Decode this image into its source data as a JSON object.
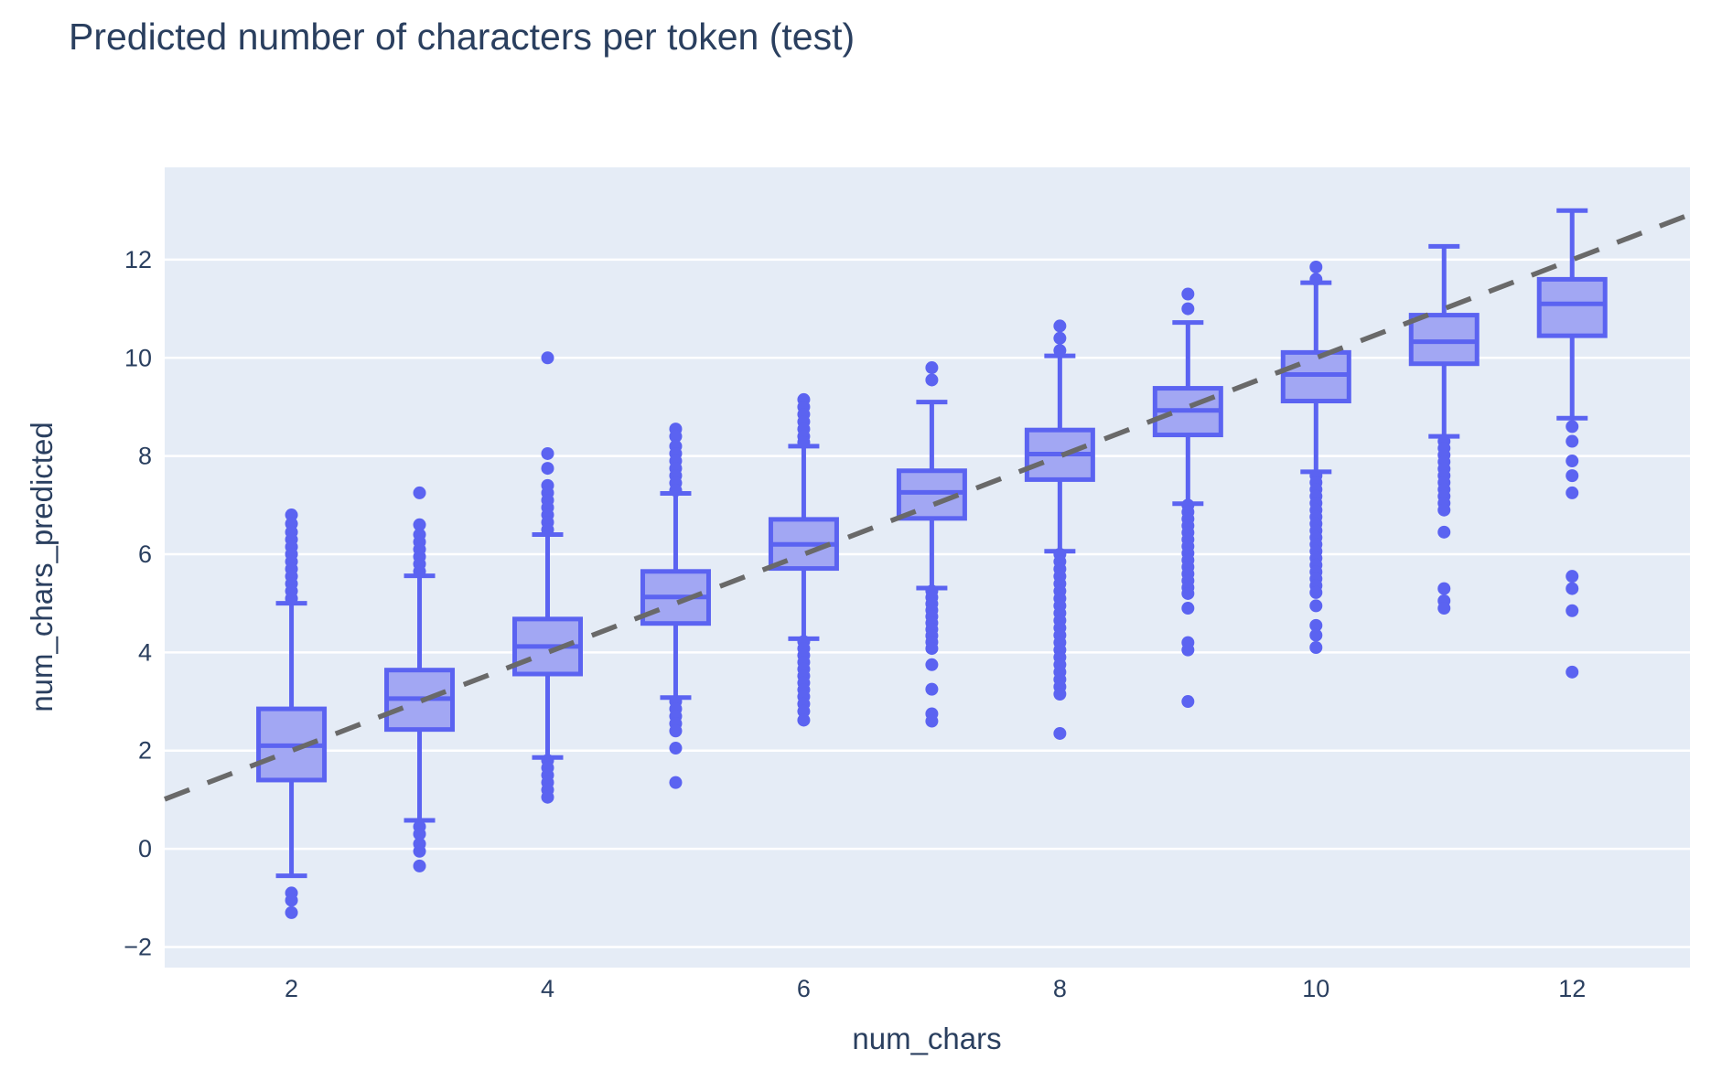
{
  "title": "Predicted number of characters per token (test)",
  "axes": {
    "x": {
      "label": "num_chars",
      "ticks": [
        2,
        4,
        6,
        8,
        10,
        12
      ],
      "range": [
        1.01,
        12.92
      ]
    },
    "y": {
      "label": "num_chars_predicted",
      "ticks": [
        -2,
        0,
        2,
        4,
        6,
        8,
        10,
        12
      ],
      "range": [
        -2.42,
        13.88
      ]
    }
  },
  "colors": {
    "paper": "#ffffff",
    "plot_bg": "#E5ECF6",
    "grid": "#ffffff",
    "box_line": "#5B63F1",
    "box_fill": "#A2A7F3",
    "marker": "#5B63F1",
    "ref_line": "#696969",
    "text": "#2A3F5F"
  },
  "chart_data": {
    "type": "box",
    "title": "Predicted number of characters per token (test)",
    "xlabel": "num_chars",
    "ylabel": "num_chars_predicted",
    "xlim": [
      1.01,
      12.92
    ],
    "ylim": [
      -2.42,
      13.88
    ],
    "grid": "horizontal-only",
    "legend": "none",
    "reference_line": {
      "name": "identity y=x",
      "style": "dashed",
      "x": [
        1.01,
        12.92
      ],
      "y": [
        1.01,
        12.92
      ]
    },
    "boxes": [
      {
        "x": 2,
        "whisker_low": -0.55,
        "q1": 1.4,
        "median": 2.1,
        "q3": 2.85,
        "whisker_high": 5.0,
        "outliers_high": [
          6.8,
          6.62,
          6.45,
          6.3,
          6.15,
          6.0,
          5.85,
          5.7,
          5.55,
          5.4,
          5.25,
          5.1
        ],
        "outliers_low": [
          -0.9,
          -1.05,
          -1.3
        ]
      },
      {
        "x": 3,
        "whisker_low": 0.58,
        "q1": 2.43,
        "median": 3.06,
        "q3": 3.64,
        "whisker_high": 5.56,
        "outliers_high": [
          7.25,
          6.6,
          6.4,
          6.25,
          6.1,
          5.95,
          5.8,
          5.65
        ],
        "outliers_low": [
          0.45,
          0.3,
          0.1,
          -0.05,
          -0.35
        ]
      },
      {
        "x": 4,
        "whisker_low": 1.86,
        "q1": 3.56,
        "median": 4.12,
        "q3": 4.68,
        "whisker_high": 6.4,
        "outliers_high": [
          10.0,
          8.05,
          7.75,
          7.4,
          7.25,
          7.1,
          6.95,
          6.8,
          6.65,
          6.5
        ],
        "outliers_low": [
          1.8,
          1.65,
          1.5,
          1.35,
          1.2,
          1.05
        ]
      },
      {
        "x": 5,
        "whisker_low": 3.08,
        "q1": 4.59,
        "median": 5.13,
        "q3": 5.65,
        "whisker_high": 7.24,
        "outliers_high": [
          8.55,
          8.4,
          8.2,
          8.05,
          7.9,
          7.75,
          7.6,
          7.45,
          7.3
        ],
        "outliers_low": [
          3.0,
          2.85,
          2.7,
          2.55,
          2.4,
          2.05,
          1.35
        ]
      },
      {
        "x": 6,
        "whisker_low": 4.28,
        "q1": 5.71,
        "median": 6.2,
        "q3": 6.71,
        "whisker_high": 8.2,
        "outliers_high": [
          9.15,
          9.0,
          8.85,
          8.7,
          8.55,
          8.4,
          8.28
        ],
        "outliers_low": [
          4.22,
          4.08,
          3.94,
          3.8,
          3.66,
          3.52,
          3.38,
          3.24,
          3.1,
          2.95,
          2.8,
          2.62
        ]
      },
      {
        "x": 7,
        "whisker_low": 5.31,
        "q1": 6.73,
        "median": 7.26,
        "q3": 7.7,
        "whisker_high": 9.1,
        "outliers_high": [
          9.8,
          9.55
        ],
        "outliers_low": [
          5.25,
          5.12,
          4.99,
          4.86,
          4.73,
          4.6,
          4.47,
          4.34,
          4.21,
          4.08,
          3.75,
          3.25,
          2.75,
          2.6
        ]
      },
      {
        "x": 8,
        "whisker_low": 6.06,
        "q1": 7.52,
        "median": 8.04,
        "q3": 8.53,
        "whisker_high": 10.04,
        "outliers_high": [
          10.65,
          10.4,
          10.15
        ],
        "outliers_low": [
          6.0,
          5.85,
          5.7,
          5.55,
          5.4,
          5.25,
          5.1,
          4.95,
          4.8,
          4.65,
          4.5,
          4.35,
          4.2,
          4.05,
          3.9,
          3.75,
          3.6,
          3.45,
          3.3,
          3.15,
          2.35
        ]
      },
      {
        "x": 9,
        "whisker_low": 7.03,
        "q1": 8.43,
        "median": 8.93,
        "q3": 9.38,
        "whisker_high": 10.72,
        "outliers_high": [
          11.3,
          11.0
        ],
        "outliers_low": [
          7.0,
          6.86,
          6.72,
          6.58,
          6.44,
          6.3,
          6.16,
          6.02,
          5.88,
          5.74,
          5.6,
          5.46,
          5.32,
          5.2,
          4.9,
          4.2,
          4.05,
          3.0
        ]
      },
      {
        "x": 10,
        "whisker_low": 7.68,
        "q1": 9.12,
        "median": 9.66,
        "q3": 10.11,
        "whisker_high": 11.53,
        "outliers_high": [
          11.85,
          11.6
        ],
        "outliers_low": [
          7.6,
          7.46,
          7.32,
          7.18,
          7.04,
          6.9,
          6.76,
          6.62,
          6.48,
          6.34,
          6.2,
          6.06,
          5.92,
          5.78,
          5.64,
          5.5,
          5.36,
          5.22,
          4.95,
          4.55,
          4.35,
          4.1
        ]
      },
      {
        "x": 11,
        "whisker_low": 8.4,
        "q1": 9.88,
        "median": 10.33,
        "q3": 10.87,
        "whisker_high": 12.27,
        "outliers_high": [],
        "outliers_low": [
          8.3,
          8.16,
          8.02,
          7.88,
          7.74,
          7.6,
          7.46,
          7.32,
          7.18,
          7.04,
          6.9,
          6.45,
          5.3,
          5.05,
          4.9
        ]
      },
      {
        "x": 12,
        "whisker_low": 8.77,
        "q1": 10.45,
        "median": 11.1,
        "q3": 11.6,
        "whisker_high": 13.0,
        "outliers_high": [],
        "outliers_low": [
          8.6,
          8.3,
          7.9,
          7.6,
          7.25,
          5.55,
          5.3,
          4.85,
          3.6
        ]
      }
    ]
  }
}
